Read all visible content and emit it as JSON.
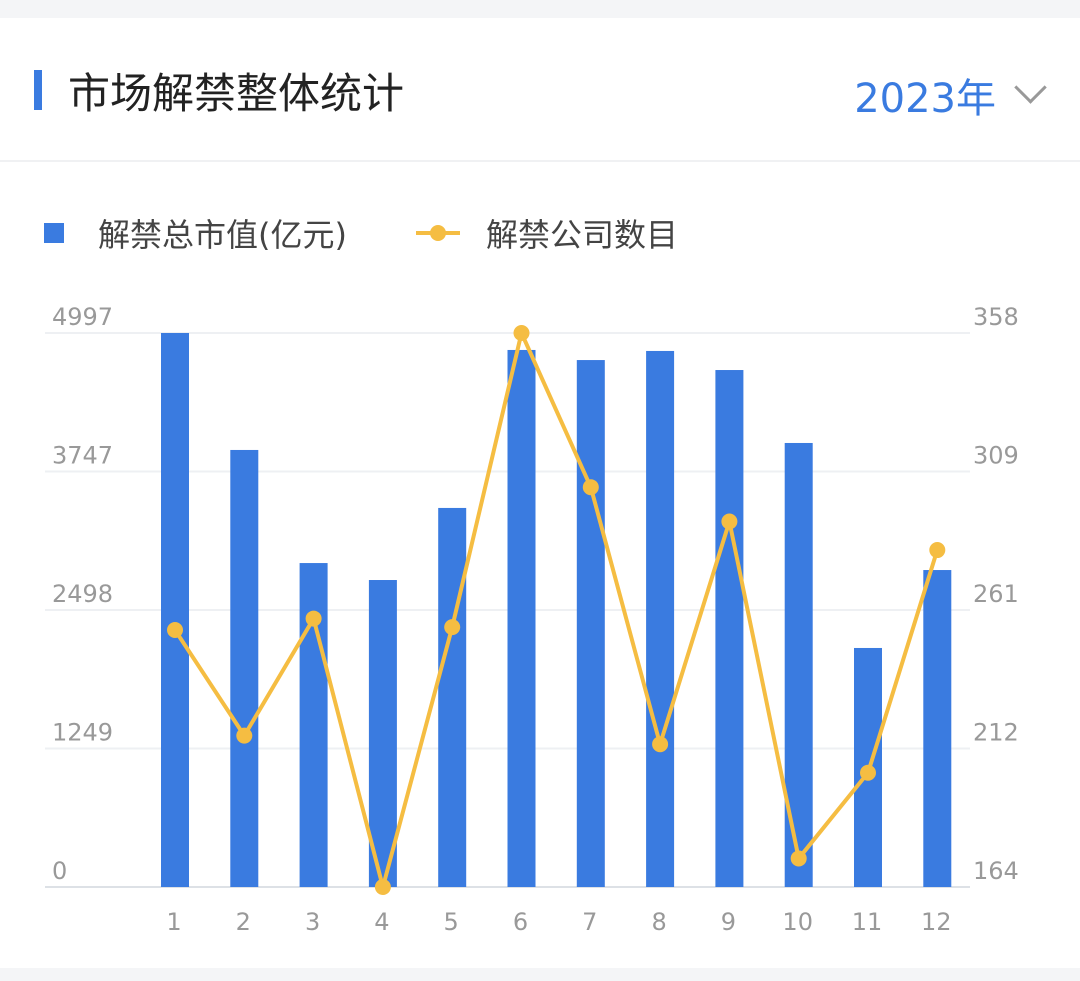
{
  "header": {
    "title": "市场解禁整体统计",
    "year": "2023年"
  },
  "colors": {
    "bar": "#3a7be0",
    "line": "#f5bd42",
    "accent": "#3a7be0"
  },
  "chart_data": {
    "type": "bar+line",
    "categories": [
      "1",
      "2",
      "3",
      "4",
      "5",
      "6",
      "7",
      "8",
      "9",
      "10",
      "11",
      "12"
    ],
    "series": [
      {
        "name": "解禁总市值(亿元)",
        "type": "bar",
        "axis": "left",
        "values": [
          4997,
          3942,
          2922,
          2769,
          3419,
          4844,
          4753,
          4835,
          4663,
          4005,
          2156,
          2859
        ]
      },
      {
        "name": "解禁公司数目",
        "type": "line",
        "axis": "right",
        "values": [
          254,
          217,
          258,
          164,
          255,
          358,
          304,
          214,
          292,
          174,
          204,
          282
        ]
      }
    ],
    "left_axis": {
      "ticks": [
        "0",
        "1249",
        "2498",
        "3747",
        "4997"
      ],
      "range": [
        0,
        4997
      ]
    },
    "right_axis": {
      "ticks": [
        "164",
        "212",
        "261",
        "309",
        "358"
      ],
      "range": [
        164,
        358
      ]
    },
    "legend_position": "top-left",
    "grid": true
  }
}
